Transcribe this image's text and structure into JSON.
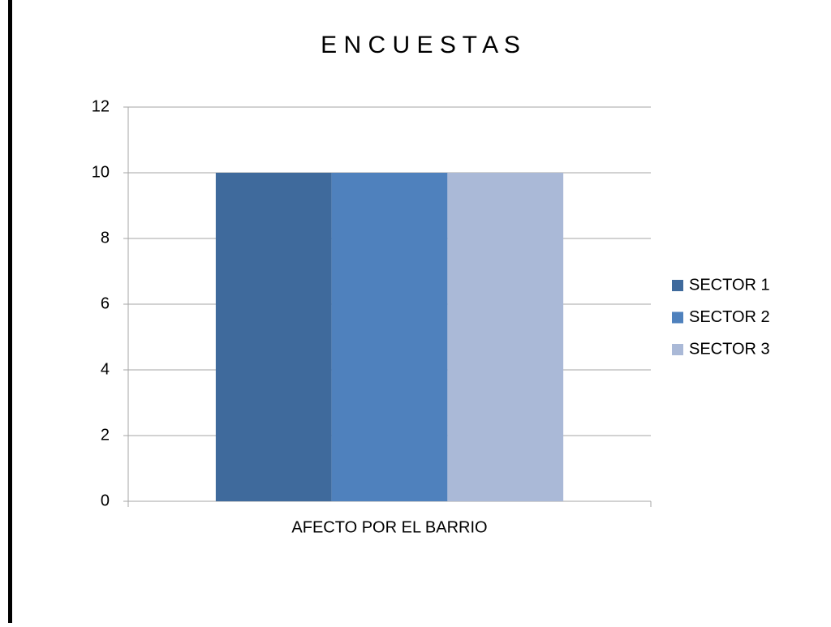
{
  "chart_data": {
    "type": "bar",
    "title": "E N C U E S T A S",
    "categories": [
      "AFECTO POR EL BARRIO"
    ],
    "series": [
      {
        "name": "SECTOR 1",
        "color": "#3f6a9c",
        "values": [
          10
        ]
      },
      {
        "name": "SECTOR 2",
        "color": "#4f81bd",
        "values": [
          10
        ]
      },
      {
        "name": "SECTOR 3",
        "color": "#aab9d7",
        "values": [
          10
        ]
      }
    ],
    "ylim": [
      0,
      12
    ],
    "yticks": [
      0,
      2,
      4,
      6,
      8,
      10,
      12
    ],
    "grid": true,
    "legend": "right"
  }
}
